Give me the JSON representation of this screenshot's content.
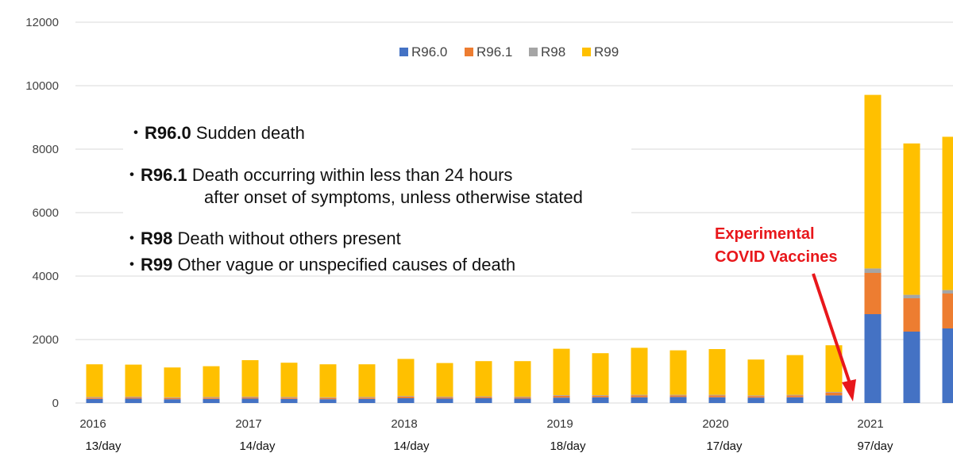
{
  "chart_data": {
    "type": "bar",
    "stacked": true,
    "y_ticks": [
      "0",
      "2000",
      "4000",
      "6000",
      "8000",
      "10000",
      "12000"
    ],
    "ylim": [
      0,
      12000
    ],
    "grid": true,
    "legend_position": "top-center",
    "x_year_labels": [
      "2016",
      "2017",
      "2018",
      "2019",
      "2020",
      "2021"
    ],
    "daily_rates": [
      "13/day",
      "14/day",
      "14/day",
      "18/day",
      "17/day",
      "97/day"
    ],
    "series": [
      {
        "name": "R96.0",
        "color": "#4472c4",
        "values": [
          130,
          140,
          120,
          130,
          140,
          130,
          120,
          130,
          150,
          140,
          150,
          140,
          170,
          180,
          180,
          190,
          180,
          170,
          180,
          240,
          2800,
          2250,
          2350
        ]
      },
      {
        "name": "R96.1",
        "color": "#ed7d31",
        "values": [
          40,
          40,
          40,
          40,
          40,
          40,
          40,
          40,
          50,
          40,
          40,
          40,
          60,
          50,
          60,
          50,
          60,
          50,
          60,
          90,
          1300,
          1050,
          1100
        ]
      },
      {
        "name": "R98",
        "color": "#a5a5a5",
        "values": [
          20,
          20,
          20,
          20,
          20,
          20,
          20,
          20,
          20,
          20,
          20,
          20,
          20,
          20,
          20,
          20,
          20,
          20,
          20,
          20,
          140,
          110,
          110
        ]
      },
      {
        "name": "R99",
        "color": "#ffc000",
        "values": [
          1030,
          1010,
          940,
          970,
          1150,
          1080,
          1040,
          1030,
          1170,
          1060,
          1110,
          1120,
          1460,
          1320,
          1480,
          1400,
          1440,
          1130,
          1250,
          1470,
          5470,
          4770,
          4830
        ]
      }
    ]
  },
  "annotations": {
    "codes": [
      {
        "bullet": "・",
        "code": "R96.0",
        "text": " Sudden death"
      },
      {
        "bullet": "・",
        "code": "R96.1",
        "text": " Death occurring within less than 24 hours"
      },
      {
        "bullet": "",
        "code": "",
        "text": "after onset of symptoms, unless otherwise stated"
      },
      {
        "bullet": "・",
        "code": "R98",
        "text": " Death without others present"
      },
      {
        "bullet": "・",
        "code": "R99",
        "text": " Other vague or unspecified causes of death"
      }
    ],
    "callout": [
      "Experimental",
      "COVID Vaccines"
    ]
  },
  "colors": {
    "arrow": "#e8171b",
    "grid": "#d9d9d9"
  }
}
